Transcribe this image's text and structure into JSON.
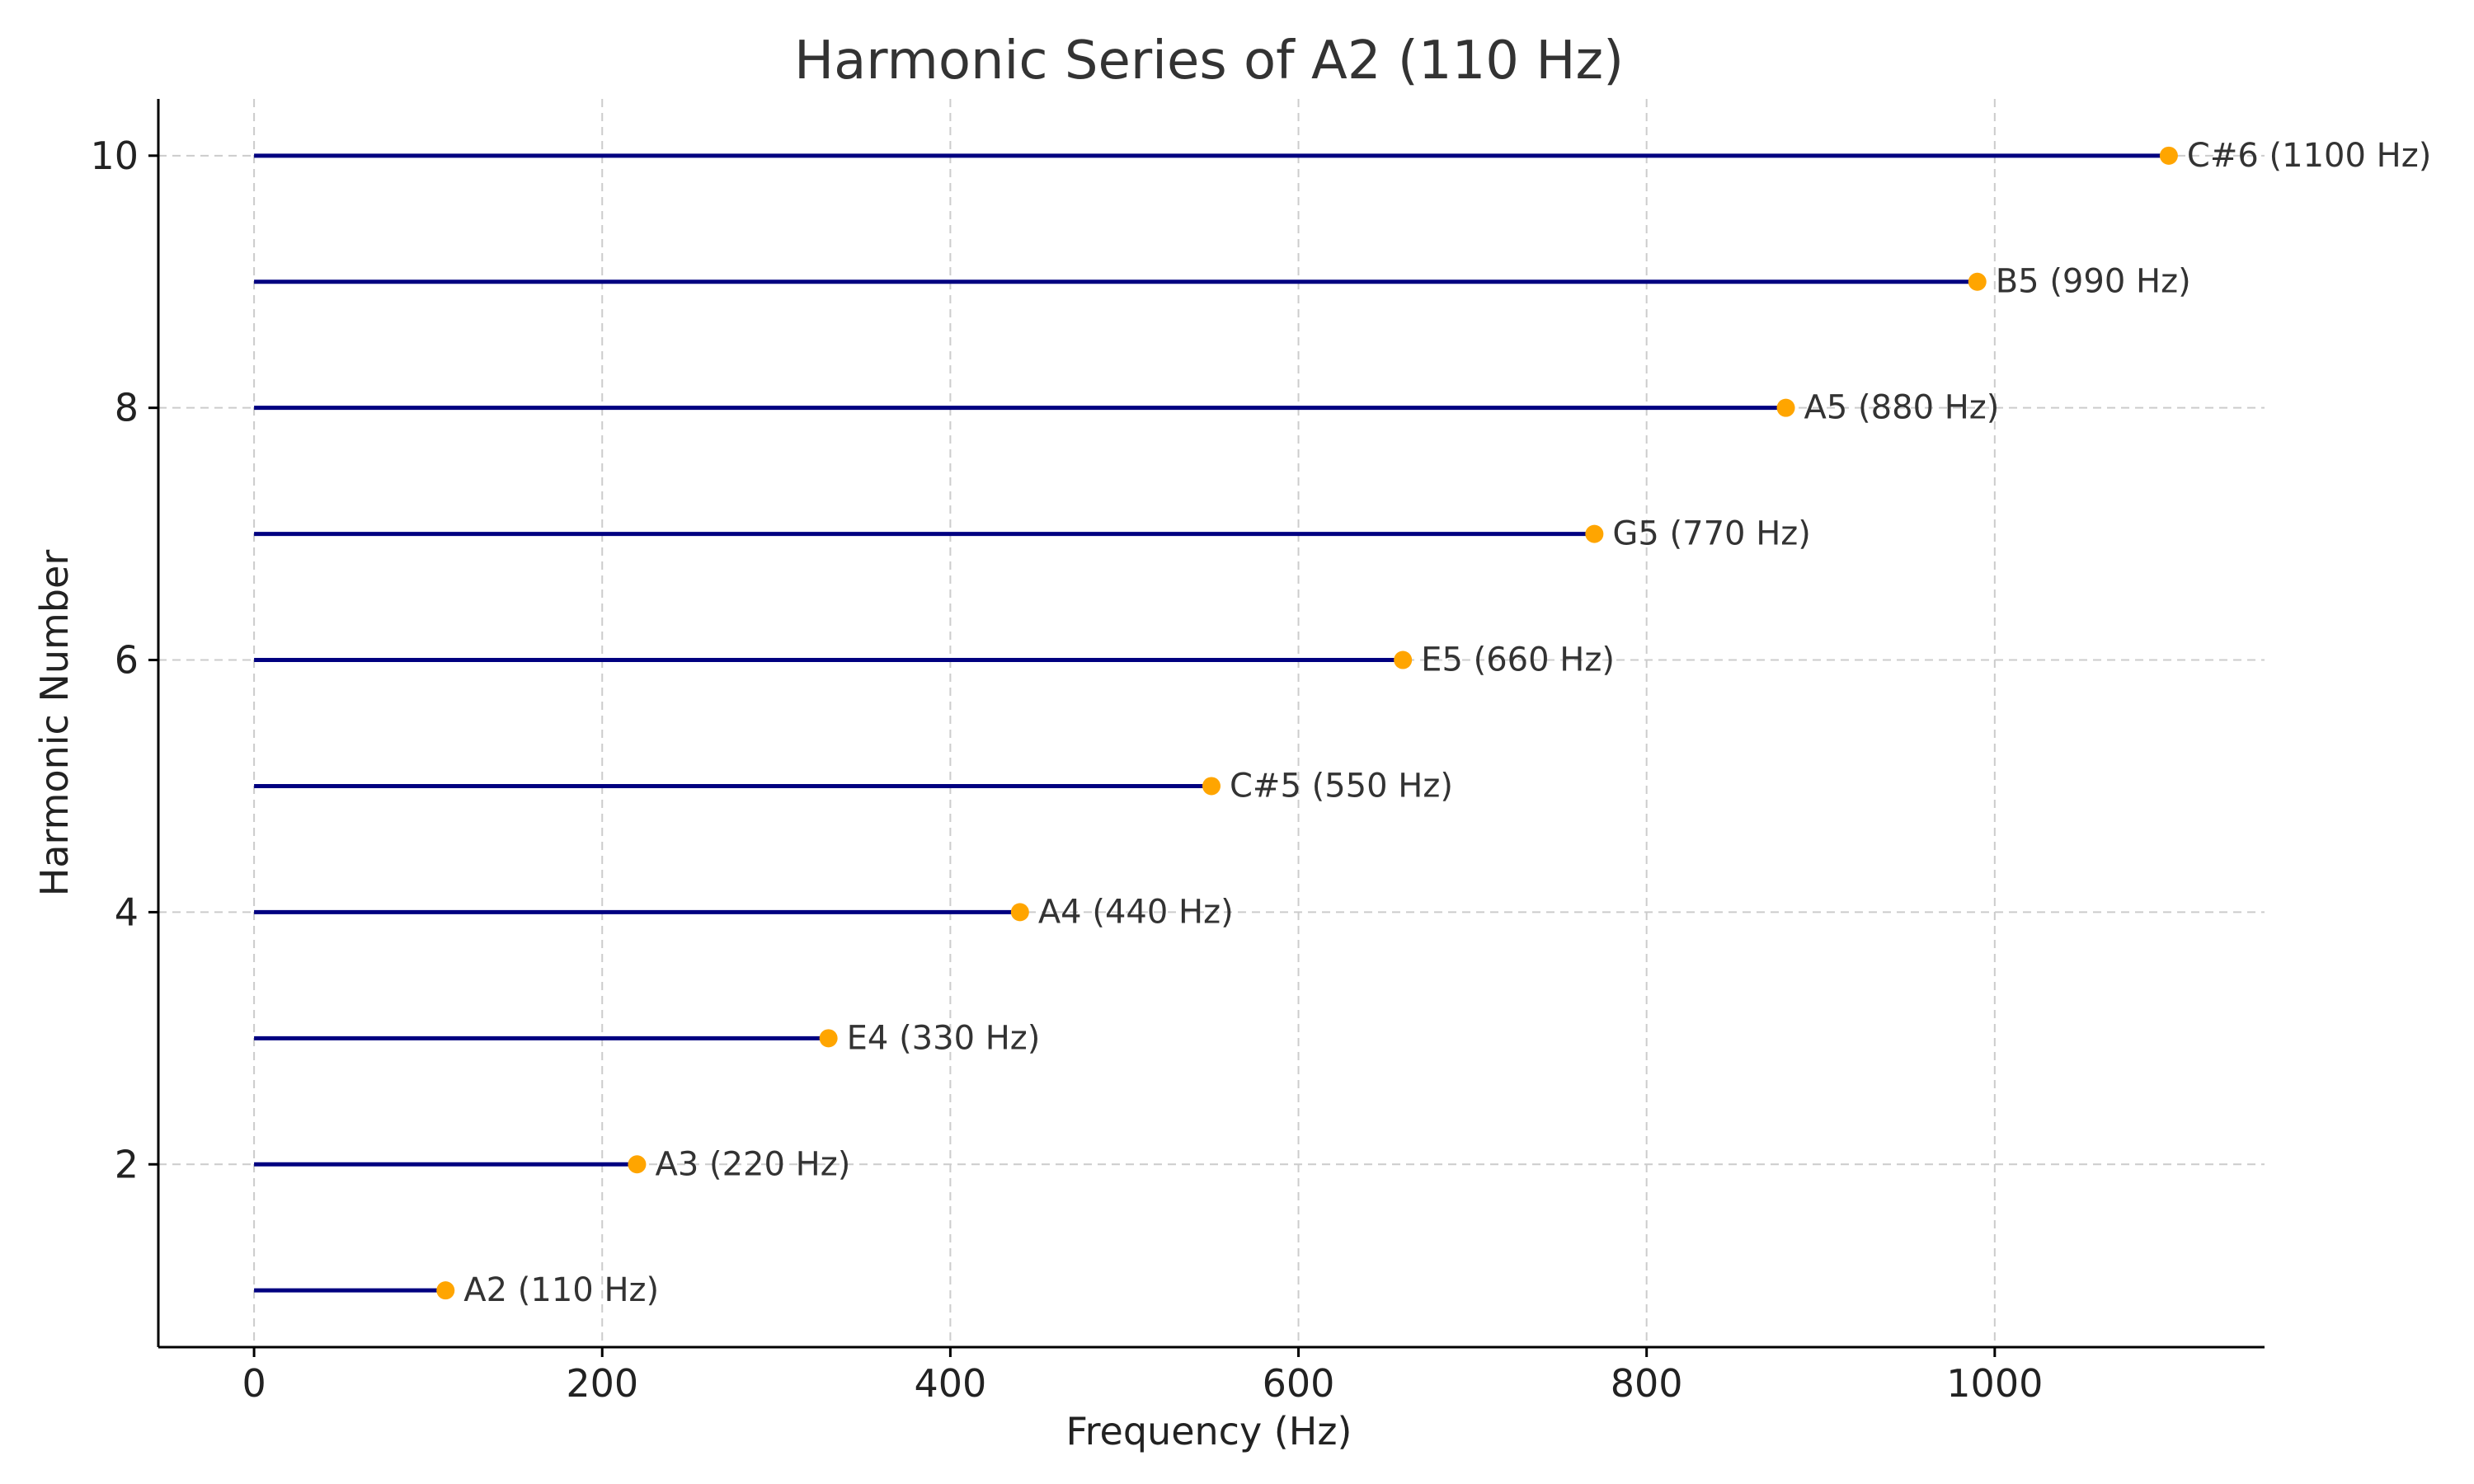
{
  "chart_data": {
    "type": "lollipop",
    "orientation": "horizontal",
    "title": "Harmonic Series of A2 (110 Hz)",
    "xlabel": "Frequency (Hz)",
    "ylabel": "Harmonic Number",
    "xlim": [
      -55,
      1155
    ],
    "ylim": [
      0.55,
      10.45
    ],
    "xticks": [
      0,
      200,
      400,
      600,
      800,
      1000
    ],
    "yticks": [
      2,
      4,
      6,
      8,
      10
    ],
    "grid": true,
    "line_color": "#000080",
    "marker_color": "#FFA500",
    "points": [
      {
        "harmonic": 1,
        "frequency": 110,
        "label": "A2 (110 Hz)"
      },
      {
        "harmonic": 2,
        "frequency": 220,
        "label": "A3 (220 Hz)"
      },
      {
        "harmonic": 3,
        "frequency": 330,
        "label": "E4 (330 Hz)"
      },
      {
        "harmonic": 4,
        "frequency": 440,
        "label": "A4 (440 Hz)"
      },
      {
        "harmonic": 5,
        "frequency": 550,
        "label": "C#5 (550 Hz)"
      },
      {
        "harmonic": 6,
        "frequency": 660,
        "label": "E5 (660 Hz)"
      },
      {
        "harmonic": 7,
        "frequency": 770,
        "label": "G5 (770 Hz)"
      },
      {
        "harmonic": 8,
        "frequency": 880,
        "label": "A5 (880 Hz)"
      },
      {
        "harmonic": 9,
        "frequency": 990,
        "label": "B5 (990 Hz)"
      },
      {
        "harmonic": 10,
        "frequency": 1100,
        "label": "C#6 (1100 Hz)"
      }
    ]
  }
}
